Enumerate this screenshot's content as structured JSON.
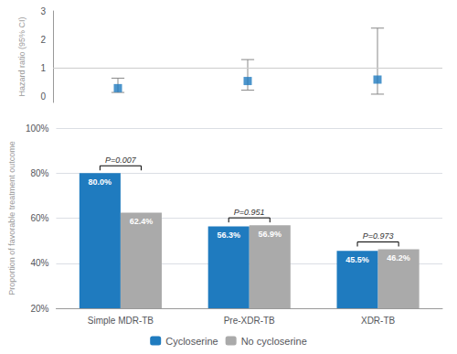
{
  "chart_data": [
    {
      "type": "scatter",
      "categories": [
        "Simple MDR-TB",
        "Pre-XDR-TB",
        "XDR-TB"
      ],
      "values": [
        0.3,
        0.55,
        0.6
      ],
      "ci_low": [
        0.15,
        0.23,
        0.09
      ],
      "ci_high": [
        0.65,
        1.3,
        2.4
      ],
      "color": "#1f7bbf",
      "marker": "square",
      "ylabel": "Hazard ratio (95% CI)",
      "ylim": [
        -0.2,
        3.0
      ],
      "yticks": [
        0,
        1,
        2,
        3
      ],
      "reference_line": 1.0,
      "grid": false,
      "tick_labels": "y"
    },
    {
      "type": "bar",
      "categories": [
        "Simple MDR-TB",
        "Pre-XDR-TB",
        "XDR-TB"
      ],
      "series": [
        {
          "name": "Cycloserine",
          "color": "#1f7bbf",
          "values": [
            80.0,
            56.3,
            45.5
          ],
          "value_labels": [
            "80.0%",
            "56.3%",
            "45.5%"
          ]
        },
        {
          "name": "No cycloserine",
          "color": "#aaaaaa",
          "values": [
            62.4,
            56.9,
            46.2
          ],
          "value_labels": [
            "62.4%",
            "56.9%",
            "46.2%"
          ]
        }
      ],
      "ylabel": "Proportion of favorable treatment outcome",
      "ylim": [
        20,
        100
      ],
      "yticks": [
        {
          "value": 20,
          "label": "20%"
        },
        {
          "value": 40,
          "label": "40%"
        },
        {
          "value": 60,
          "label": "60%"
        },
        {
          "value": 80,
          "label": "80%"
        },
        {
          "value": 100,
          "label": "100%"
        }
      ],
      "data_labels": true,
      "annotations": [
        "P=0.007",
        "P=0.951",
        "P=0.973"
      ],
      "grid": true,
      "legend": "bottom"
    }
  ]
}
